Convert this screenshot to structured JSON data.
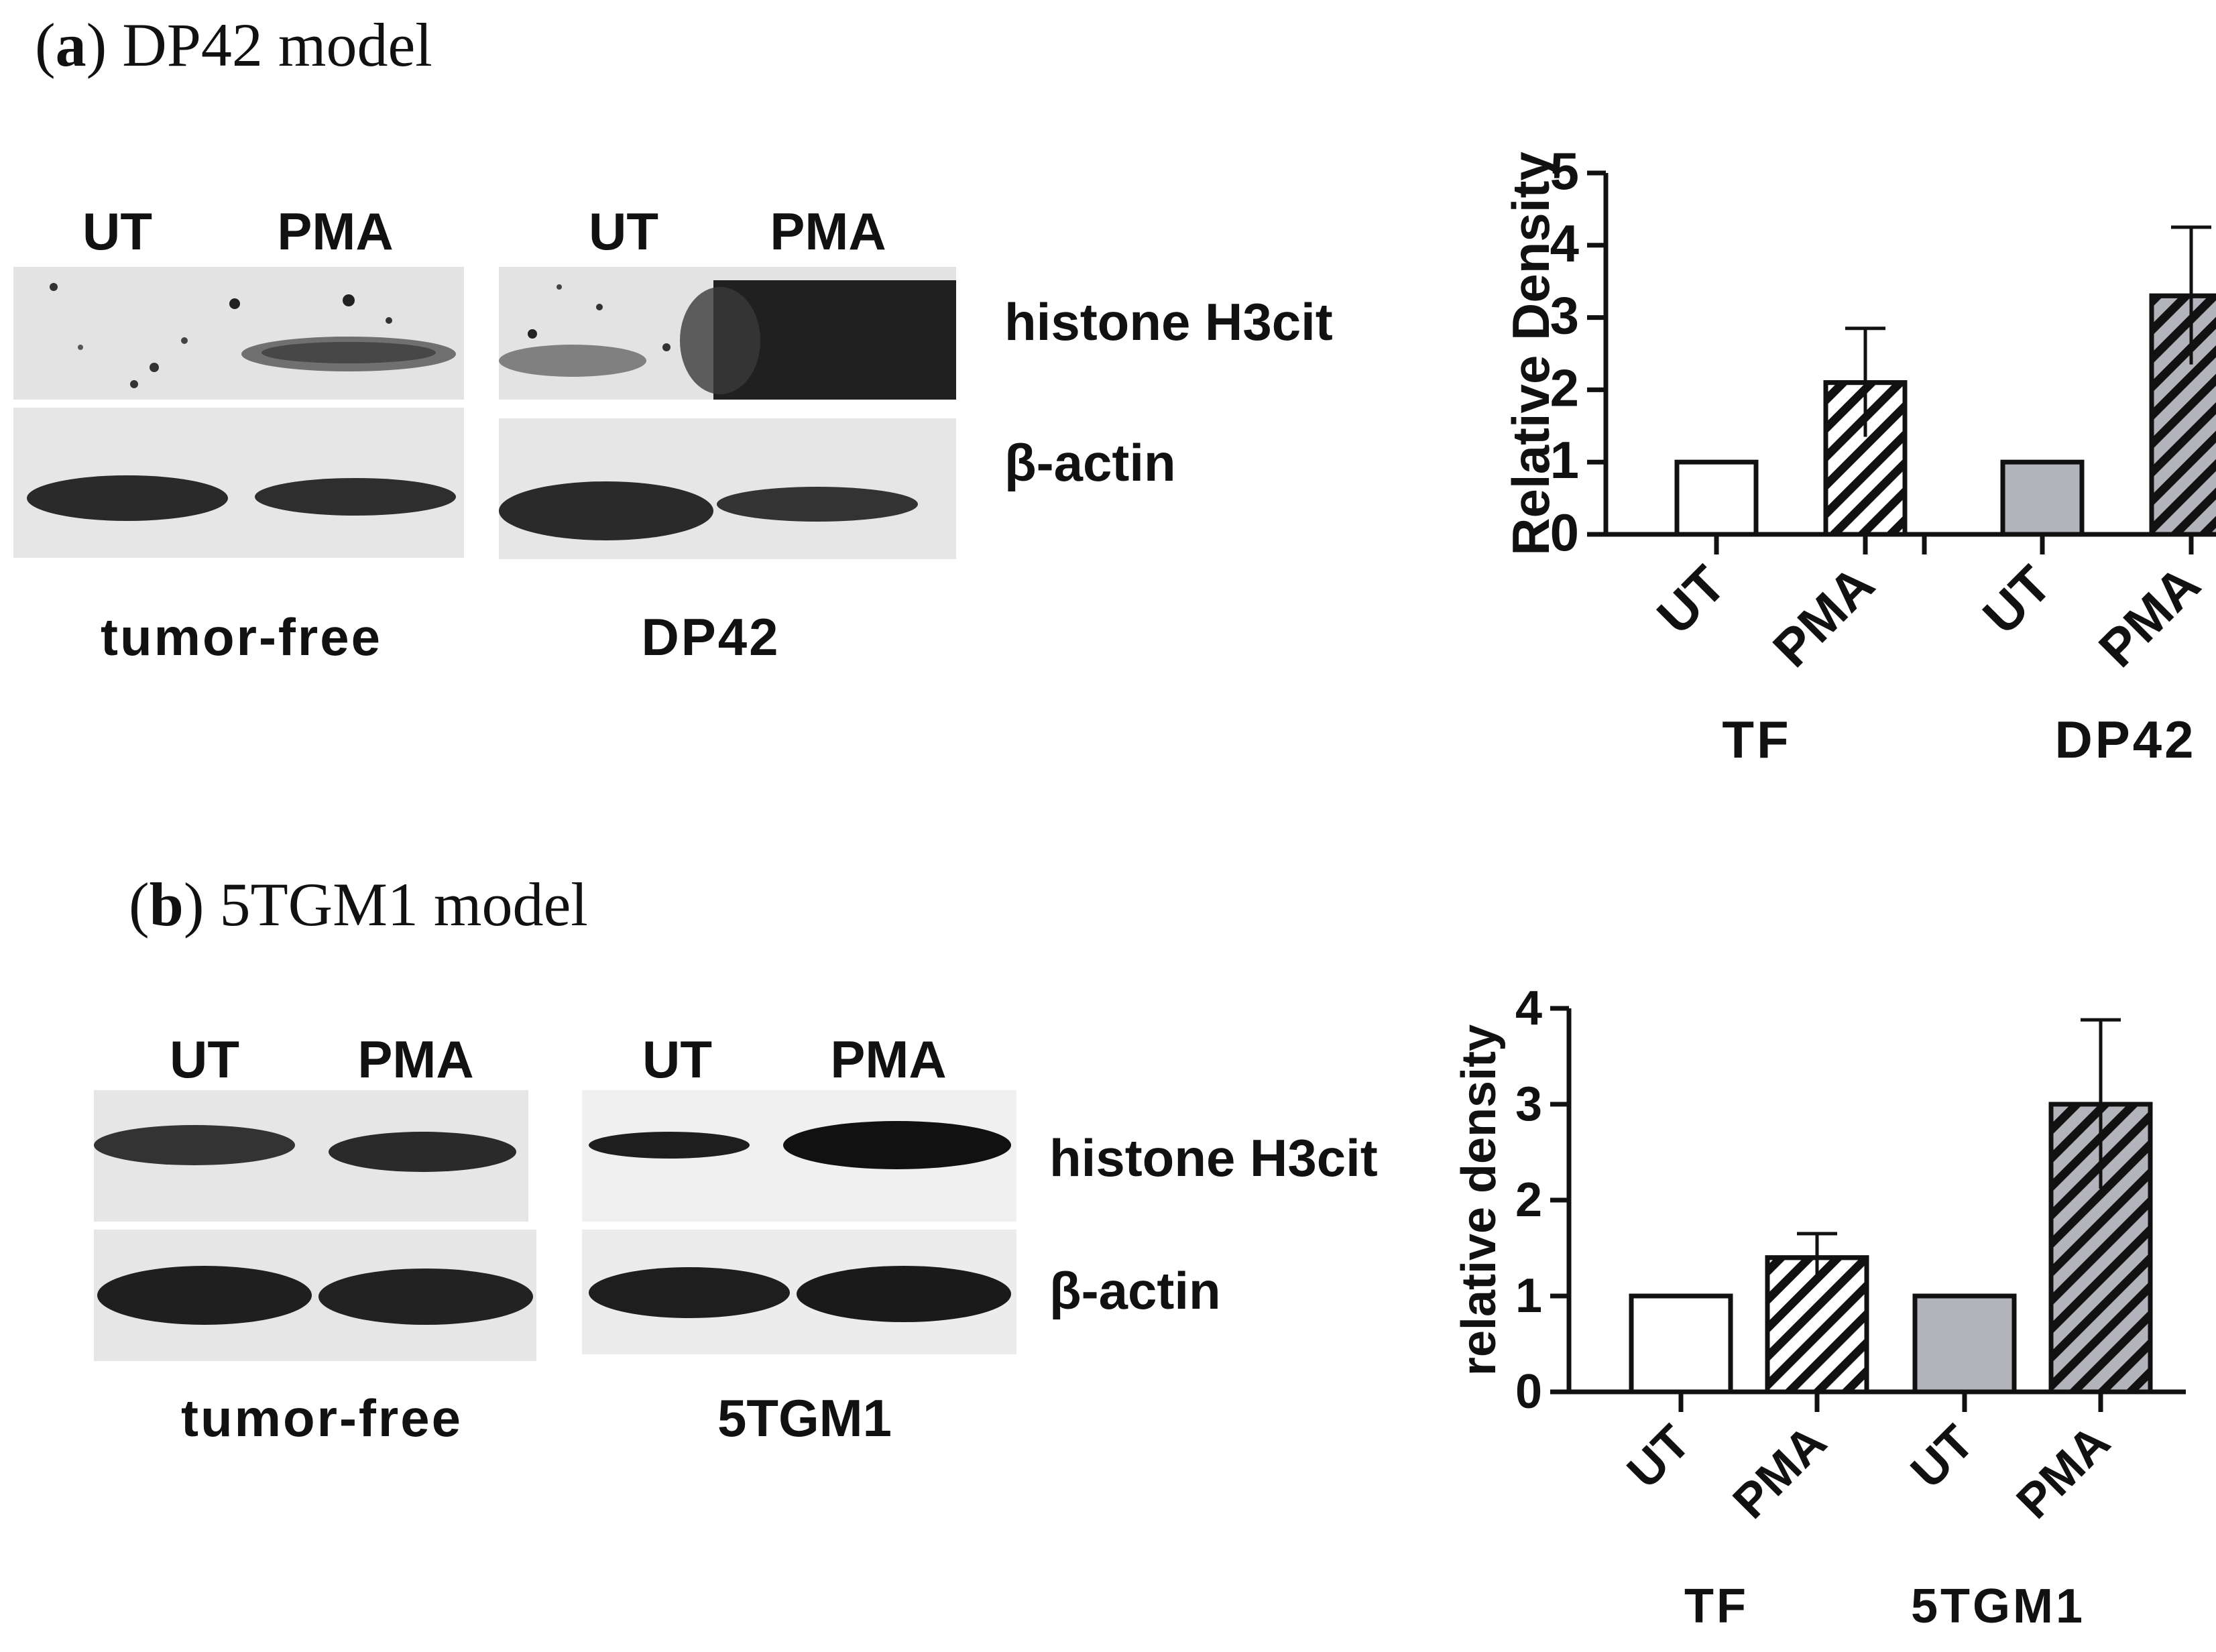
{
  "panel_a": {
    "title_letter": "a",
    "title_text": "DP42 model",
    "blots": {
      "left_headers": [
        "UT",
        "PMA"
      ],
      "right_headers": [
        "UT",
        "PMA"
      ],
      "row_labels": [
        "histone H3cit",
        "β-actin"
      ],
      "group_left": "tumor-free",
      "group_right": "DP42"
    }
  },
  "panel_b": {
    "title_letter": "b",
    "title_text": "5TGM1 model",
    "blots": {
      "left_headers": [
        "UT",
        "PMA"
      ],
      "right_headers": [
        "UT",
        "PMA"
      ],
      "row_labels": [
        "histone H3cit",
        "β-actin"
      ],
      "group_left": "tumor-free",
      "group_right": "5TGM1"
    }
  },
  "colors": {
    "bar_white": "#ffffff",
    "bar_gray": "#b3b3bc",
    "outline": "#111111",
    "blot_bg": "#e6e6e6",
    "band": "#1c1c1c"
  },
  "chart_data": [
    {
      "type": "bar",
      "ylabel": "Relative Density",
      "ylim": [
        0,
        5
      ],
      "yticks": [
        0,
        1,
        2,
        3,
        4,
        5
      ],
      "categories": [
        "UT",
        "PMA",
        "UT",
        "PMA"
      ],
      "groups": [
        "TF",
        "DP42"
      ],
      "values": [
        1.0,
        2.1,
        1.0,
        3.3
      ],
      "errors": [
        0,
        0.75,
        0,
        0.95
      ],
      "fills": [
        "white",
        "white-hatched",
        "gray",
        "gray-hatched"
      ]
    },
    {
      "type": "bar",
      "ylabel": "relative density",
      "ylim": [
        0,
        4
      ],
      "yticks": [
        0,
        1,
        2,
        3,
        4
      ],
      "categories": [
        "UT",
        "PMA",
        "UT",
        "PMA"
      ],
      "groups": [
        "TF",
        "5TGM1"
      ],
      "values": [
        1.0,
        1.4,
        1.0,
        3.0
      ],
      "errors": [
        0,
        0.25,
        0,
        0.88
      ],
      "fills": [
        "white",
        "white-hatched",
        "gray",
        "gray-hatched"
      ]
    }
  ]
}
